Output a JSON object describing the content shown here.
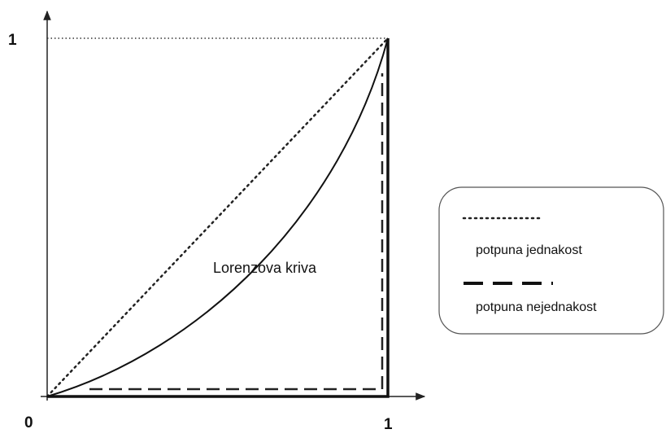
{
  "axes": {
    "y_max_label": "1",
    "origin_label": "0",
    "x_max_label": "1"
  },
  "curve_label": "Lorenzova kriva",
  "legend": {
    "items": [
      {
        "label": "potpuna jednakost"
      },
      {
        "label": "potpuna nejednakost"
      }
    ]
  }
}
